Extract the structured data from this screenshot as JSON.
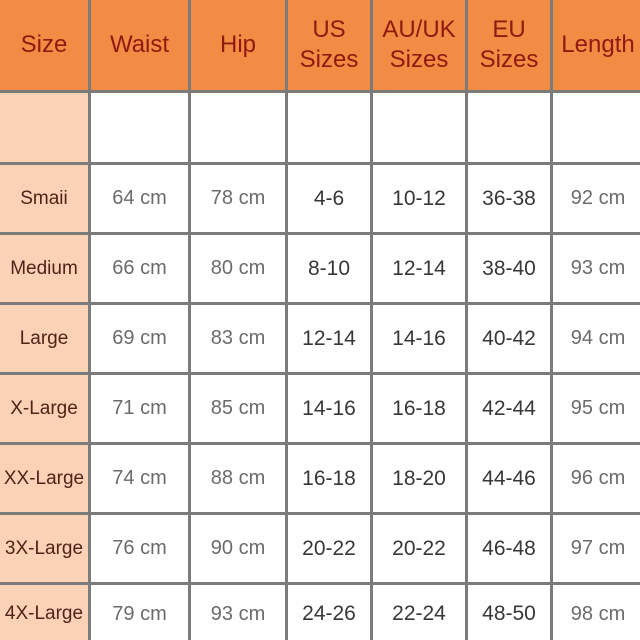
{
  "chart_data": {
    "type": "table",
    "title": "",
    "columns": [
      {
        "id": "size",
        "label": "Size"
      },
      {
        "id": "waist",
        "label": "Waist"
      },
      {
        "id": "hip",
        "label": "Hip"
      },
      {
        "id": "us-sizes",
        "label": "US\nSizes"
      },
      {
        "id": "auuk-sizes",
        "label": "AU/UK\nSizes"
      },
      {
        "id": "eu-sizes",
        "label": "EU\nSizes"
      },
      {
        "id": "length",
        "label": "Length"
      }
    ],
    "rows": [
      [
        "",
        "",
        "",
        "",
        "",
        "",
        ""
      ],
      [
        "Smaii",
        "64 cm",
        "78 cm",
        "4-6",
        "10-12",
        "36-38",
        "92 cm"
      ],
      [
        "Medium",
        "66 cm",
        "80 cm",
        "8-10",
        "12-14",
        "38-40",
        "93 cm"
      ],
      [
        "Large",
        "69 cm",
        "83 cm",
        "12-14",
        "14-16",
        "40-42",
        "94 cm"
      ],
      [
        "X-Large",
        "71 cm",
        "85 cm",
        "14-16",
        "16-18",
        "42-44",
        "95 cm"
      ],
      [
        "XX-Large",
        "74 cm",
        "88 cm",
        "16-18",
        "18-20",
        "44-46",
        "96 cm"
      ],
      [
        "3X-Large",
        "76 cm",
        "90 cm",
        "20-22",
        "20-22",
        "46-48",
        "97 cm"
      ],
      [
        "4X-Large",
        "79 cm",
        "93 cm",
        "24-26",
        "22-24",
        "48-50",
        "98 cm"
      ]
    ],
    "layout": {
      "grid": "on",
      "header_row": true,
      "empty_spacer_row_index": 0
    }
  },
  "colors": {
    "header_bg": "#F28B44",
    "header_text": "#8F1A10",
    "size_col_bg": "#FAD3B6",
    "size_col_text": "#4E2418",
    "measure_text": "#6B6B6B",
    "range_text": "#373737",
    "grid": "#7B7B7B",
    "cell_bg": "#FFFFFF"
  }
}
